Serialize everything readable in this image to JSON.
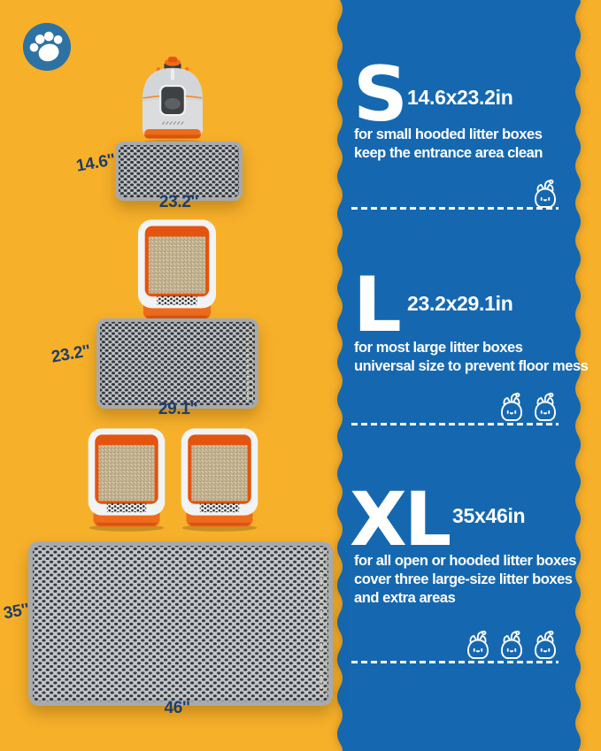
{
  "infographic": {
    "sections": [
      {
        "letter": "S",
        "dimensions": "14.6x23.2in",
        "description_lines": [
          "for small hooded litter boxes",
          "keep the entrance area clean"
        ],
        "cat_count": 1
      },
      {
        "letter": "L",
        "dimensions": "23.2x29.1in",
        "description_lines": [
          "for most large litter boxes",
          "universal size to prevent floor mess"
        ],
        "cat_count": 2
      },
      {
        "letter": "XL",
        "dimensions": "35x46in",
        "description_lines": [
          "for all open or hooded litter boxes",
          "cover three large-size litter boxes",
          "and extra areas"
        ],
        "cat_count": 3
      }
    ]
  },
  "mat_labels": {
    "s": {
      "width": "14.6''",
      "length": "23.2''"
    },
    "l": {
      "width": "23.2''",
      "length": "29.1''"
    },
    "xl": {
      "width": "35''",
      "length": "46''"
    }
  },
  "icons": {
    "brand": "paw-icon",
    "section_marker": "cat-icon"
  },
  "colors": {
    "background_yellow": "#F7B02A",
    "panel_blue": "#1568B0",
    "paw_badge_blue": "#2E72A3",
    "accent_orange": "#EE6A1C",
    "label_navy": "#203E66",
    "text_white": "#FFFFFF",
    "mat_gray": "#C4C7CA"
  }
}
